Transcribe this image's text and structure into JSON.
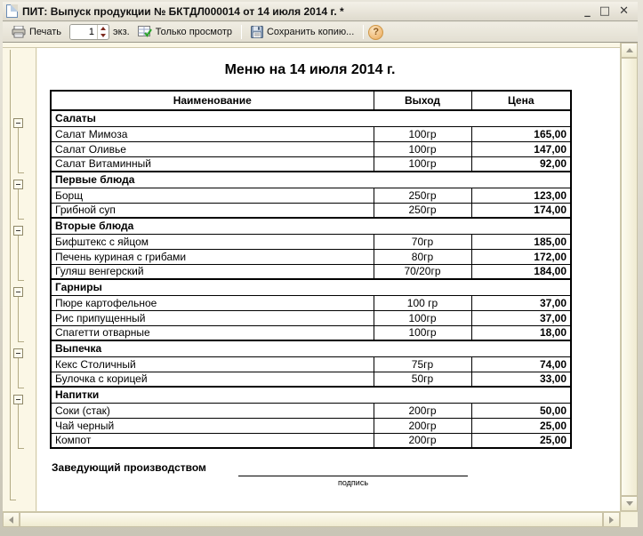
{
  "window": {
    "title": "ПИТ: Выпуск продукции № БКТДЛ000014 от 14 июля 2014 г. *",
    "controls": {
      "minimize": "_",
      "maximize": "□",
      "close": "✕"
    }
  },
  "toolbar": {
    "print_label": "Печать",
    "copies_value": "1",
    "copies_suffix": "экз.",
    "view_only_label": "Только просмотр",
    "save_copy_label": "Сохранить копию...",
    "help_label": "?"
  },
  "document": {
    "title": "Меню на 14 июля 2014 г.",
    "columns": [
      "Наименование",
      "Выход",
      "Цена"
    ],
    "sections": [
      {
        "name": "Салаты",
        "items": [
          [
            "Салат Мимоза",
            "100гр",
            "165,00"
          ],
          [
            "Салат Оливье",
            "100гр",
            "147,00"
          ],
          [
            "Салат Витаминный",
            "100гр",
            "92,00"
          ]
        ]
      },
      {
        "name": "Первые блюда",
        "items": [
          [
            "Борщ",
            "250гр",
            "123,00"
          ],
          [
            "Грибной суп",
            "250гр",
            "174,00"
          ]
        ]
      },
      {
        "name": "Вторые блюда",
        "items": [
          [
            "Бифштекс с яйцом",
            "70гр",
            "185,00"
          ],
          [
            "Печень куриная с грибами",
            "80гр",
            "172,00"
          ],
          [
            "Гуляш венгерский",
            "70/20гр",
            "184,00"
          ]
        ]
      },
      {
        "name": "Гарниры",
        "items": [
          [
            "Пюре картофельное",
            "100 гр",
            "37,00"
          ],
          [
            "Рис припущенный",
            "100гр",
            "37,00"
          ],
          [
            "Спагетти отварные",
            "100гр",
            "18,00"
          ]
        ]
      },
      {
        "name": "Выпечка",
        "items": [
          [
            "Кекс Столичный",
            "75гр",
            "74,00"
          ],
          [
            "Булочка с корицей",
            "50гр",
            "33,00"
          ]
        ]
      },
      {
        "name": "Напитки",
        "items": [
          [
            "Соки (стак)",
            "200гр",
            "50,00"
          ],
          [
            "Чай черный",
            "200гр",
            "25,00"
          ],
          [
            "Компот",
            "200гр",
            "25,00"
          ]
        ]
      }
    ],
    "footer": {
      "label": "Заведующий производством",
      "signature_caption": "подпись"
    }
  },
  "colors": {
    "content_bg": "#fbf7e6",
    "page_bg": "#ffffff",
    "table_border": "#000000",
    "margin_line": "#b3ab85",
    "help_orange": "#f2c080",
    "spinner_arrow": "#7e2b20",
    "check_green": "#2fa32f"
  }
}
